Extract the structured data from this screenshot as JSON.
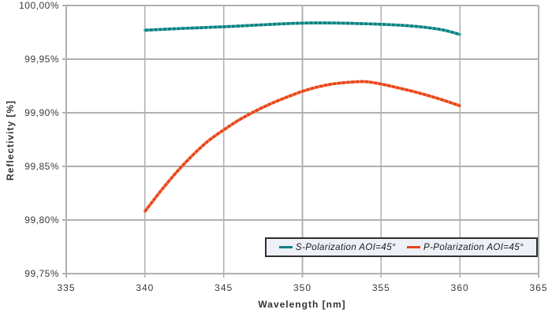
{
  "page": {
    "background": "#ffffff"
  },
  "chart_data": {
    "type": "line",
    "title": "",
    "xlabel": "Wavelength [nm]",
    "ylabel": "Reflectivity [%]",
    "xlim": [
      335,
      365
    ],
    "ylim": [
      99.75,
      100.0
    ],
    "x_ticks": [
      335,
      340,
      345,
      350,
      355,
      360,
      365
    ],
    "x_tick_labels": [
      "335",
      "340",
      "345",
      "350",
      "355",
      "360",
      "365"
    ],
    "y_ticks": [
      99.75,
      99.8,
      99.85,
      99.9,
      99.95,
      100.0
    ],
    "y_tick_labels": [
      "99,75%",
      "99,80%",
      "99,85%",
      "99,90%",
      "99,95%",
      "100,00%"
    ],
    "grid": true,
    "legend": {
      "position": "bottom-right-inside",
      "background": "#eef0f7",
      "border_color": "#2f2f2f"
    },
    "colors": {
      "grid": "#b0b0b0",
      "tick_text": "#3a3a3a",
      "axis_title": "#333333"
    },
    "series": [
      {
        "name": "S-Polarization AOI=45°",
        "color": "#0c7f81",
        "color_light": "#49b1a9",
        "x": [
          340,
          341,
          342,
          343,
          344,
          345,
          346,
          347,
          348,
          349,
          350,
          351,
          352,
          353,
          354,
          355,
          356,
          357,
          358,
          359,
          360
        ],
        "y": [
          99.977,
          99.9777,
          99.9784,
          99.979,
          99.9796,
          99.9802,
          99.9809,
          99.9817,
          99.9824,
          99.9831,
          99.9836,
          99.9838,
          99.9837,
          99.9834,
          99.983,
          99.9825,
          99.9818,
          99.9808,
          99.9793,
          99.977,
          99.973
        ]
      },
      {
        "name": "P-Polarization AOI=45°",
        "color": "#e8441a",
        "color_light": "#f2774a",
        "x": [
          340,
          341,
          342,
          343,
          344,
          345,
          346,
          347,
          348,
          349,
          350,
          351,
          352,
          353,
          354,
          355,
          356,
          357,
          358,
          359,
          360
        ],
        "y": [
          99.808,
          99.827,
          99.8445,
          99.86,
          99.8735,
          99.884,
          99.8935,
          99.9015,
          99.9085,
          99.9145,
          99.92,
          99.9242,
          99.927,
          99.9285,
          99.929,
          99.9268,
          99.9235,
          99.92,
          99.916,
          99.9115,
          99.9065
        ]
      }
    ]
  }
}
